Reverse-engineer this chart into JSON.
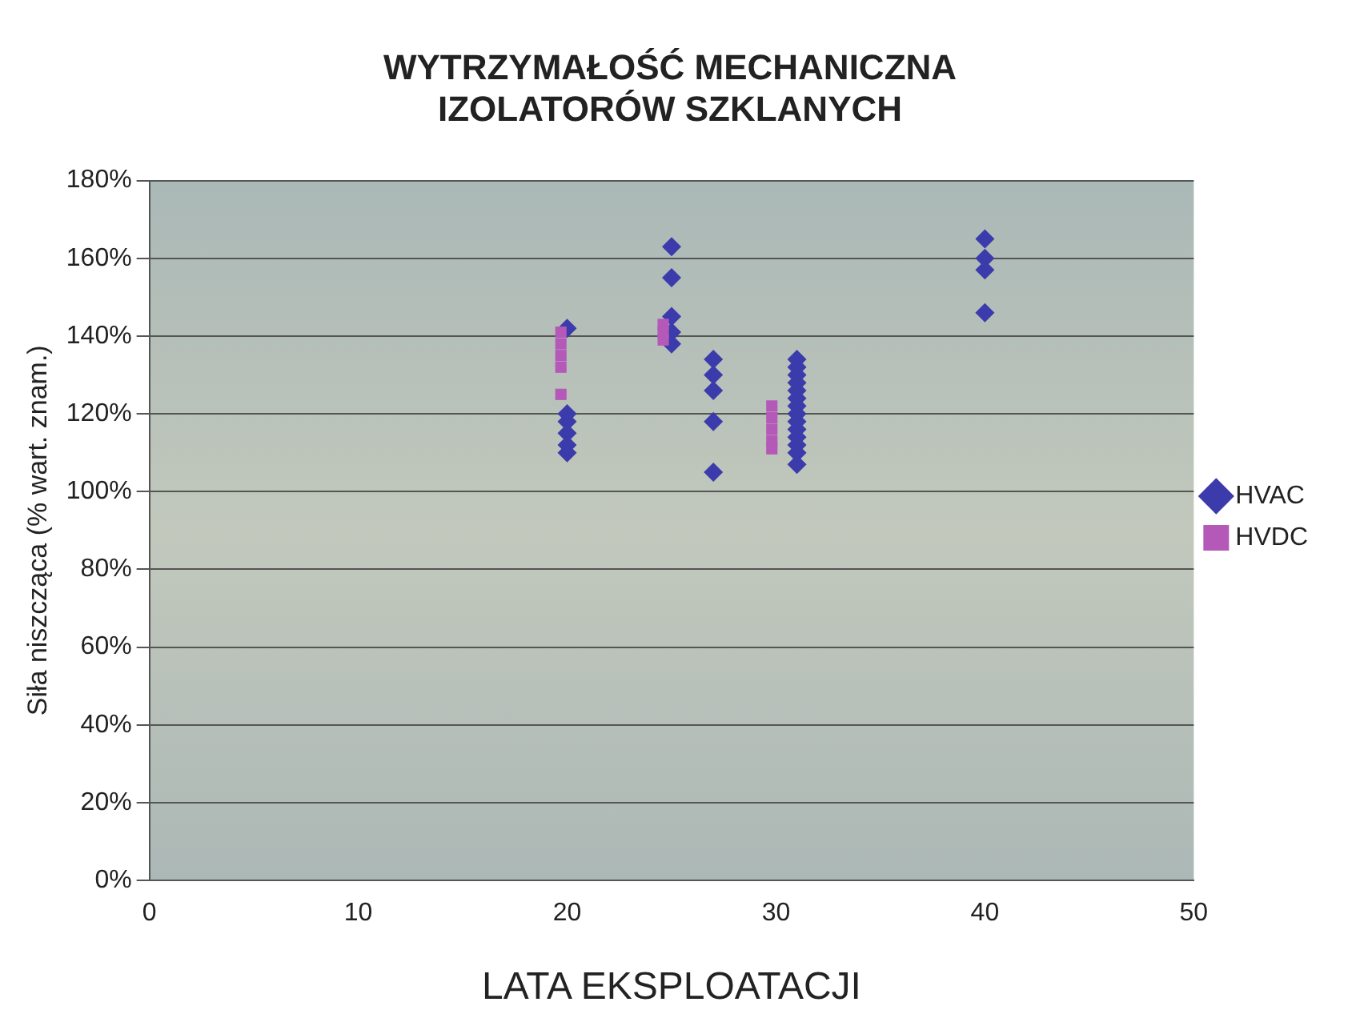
{
  "chart_data": {
    "type": "scatter",
    "title": "WYTRZYMAŁOŚĆ MECHANICZNA\nIZOLATORÓW SZKLANYCH",
    "xlabel": "LATA EKSPLOATACJI",
    "ylabel": "Siła niszcząca (% wart. znam.)",
    "xlim": [
      0,
      50
    ],
    "xticks": [
      0,
      10,
      20,
      30,
      40,
      50
    ],
    "ylim": [
      0,
      180
    ],
    "yticks": [
      {
        "value": 0,
        "label": "0%"
      },
      {
        "value": 20,
        "label": "20%"
      },
      {
        "value": 40,
        "label": "40%"
      },
      {
        "value": 60,
        "label": "60%"
      },
      {
        "value": 80,
        "label": "80%"
      },
      {
        "value": 100,
        "label": "100%"
      },
      {
        "value": 120,
        "label": "120%"
      },
      {
        "value": 140,
        "label": "140%"
      },
      {
        "value": 160,
        "label": "160%"
      },
      {
        "value": 180,
        "label": "180%"
      }
    ],
    "grid": "y",
    "legend": "right",
    "series": [
      {
        "name": "HVAC",
        "color": "#3b3bab",
        "marker": "diamond",
        "x": [
          20,
          20,
          20,
          20,
          20,
          20,
          25,
          25,
          25,
          25,
          25,
          27,
          27,
          27,
          27,
          27,
          31,
          31,
          31,
          31,
          31,
          31,
          31,
          31,
          31,
          31,
          31,
          31,
          31,
          31,
          40,
          40,
          40,
          40
        ],
        "values": [
          142,
          120,
          118,
          115,
          112,
          110,
          163,
          155,
          145,
          141,
          138,
          134,
          130,
          126,
          118,
          105,
          134,
          132,
          130,
          128,
          126,
          124,
          122,
          120,
          118,
          116,
          114,
          112,
          110,
          107,
          165,
          160,
          157,
          146
        ]
      },
      {
        "name": "HVDC",
        "color": "#b459b8",
        "marker": "square",
        "x": [
          19.7,
          19.7,
          19.7,
          19.7,
          19.7,
          24.6,
          24.6,
          24.6,
          29.8,
          29.8,
          29.8,
          29.8,
          29.8
        ],
        "values": [
          141,
          138,
          135,
          132,
          125,
          143,
          141,
          139,
          122,
          119,
          116,
          113,
          111
        ]
      }
    ]
  }
}
